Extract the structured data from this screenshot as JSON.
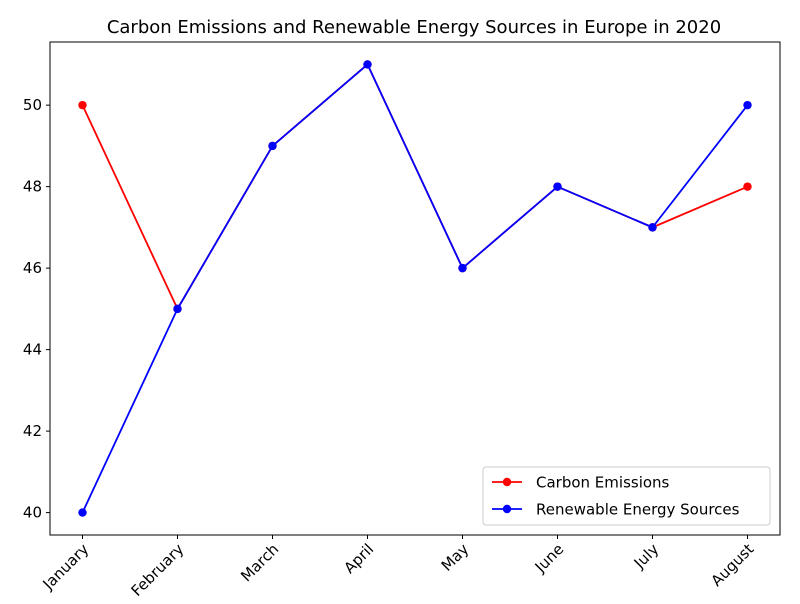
{
  "chart_data": {
    "type": "line",
    "title": "Carbon Emissions and Renewable Energy Sources in Europe in 2020",
    "xlabel": "",
    "ylabel": "",
    "categories": [
      "January",
      "February",
      "March",
      "April",
      "May",
      "June",
      "July",
      "August"
    ],
    "series": [
      {
        "name": "Carbon Emissions",
        "color": "#ff0000",
        "values": [
          50,
          45,
          49,
          51,
          46,
          48,
          47,
          48
        ]
      },
      {
        "name": "Renewable Energy Sources",
        "color": "#0000ff",
        "values": [
          40,
          45,
          49,
          51,
          46,
          48,
          47,
          50
        ]
      }
    ],
    "ylim": [
      39.45,
      51.55
    ],
    "yticks": [
      40,
      42,
      44,
      46,
      48,
      50
    ],
    "grid": false,
    "legend_position": "lower-right",
    "xtick_rotation_deg": 45
  }
}
